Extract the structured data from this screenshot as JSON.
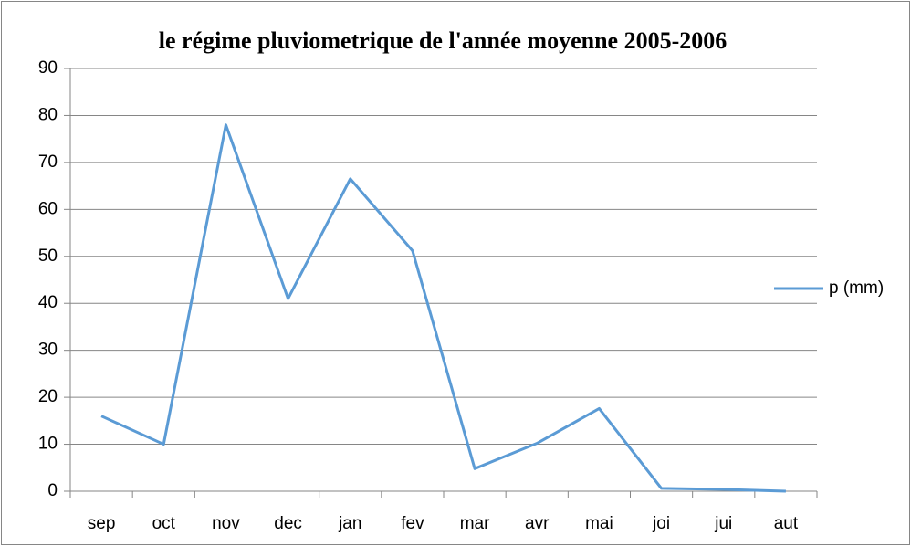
{
  "chart_data": {
    "type": "line",
    "title": "le régime pluviometrique de l'année moyenne 2005-2006",
    "categories": [
      "sep",
      "oct",
      "nov",
      "dec",
      "jan",
      "fev",
      "mar",
      "avr",
      "mai",
      "joi",
      "jui",
      "aut"
    ],
    "series": [
      {
        "name": "p (mm)",
        "color": "#5b9bd5",
        "values": [
          16,
          10,
          78,
          41,
          66.5,
          51.2,
          4.8,
          10.2,
          17.6,
          0.6,
          0.4,
          0
        ]
      }
    ],
    "ylim": [
      0,
      90
    ],
    "yticks": [
      0,
      10,
      20,
      30,
      40,
      50,
      60,
      70,
      80,
      90
    ],
    "grid": true,
    "legend": "right"
  }
}
